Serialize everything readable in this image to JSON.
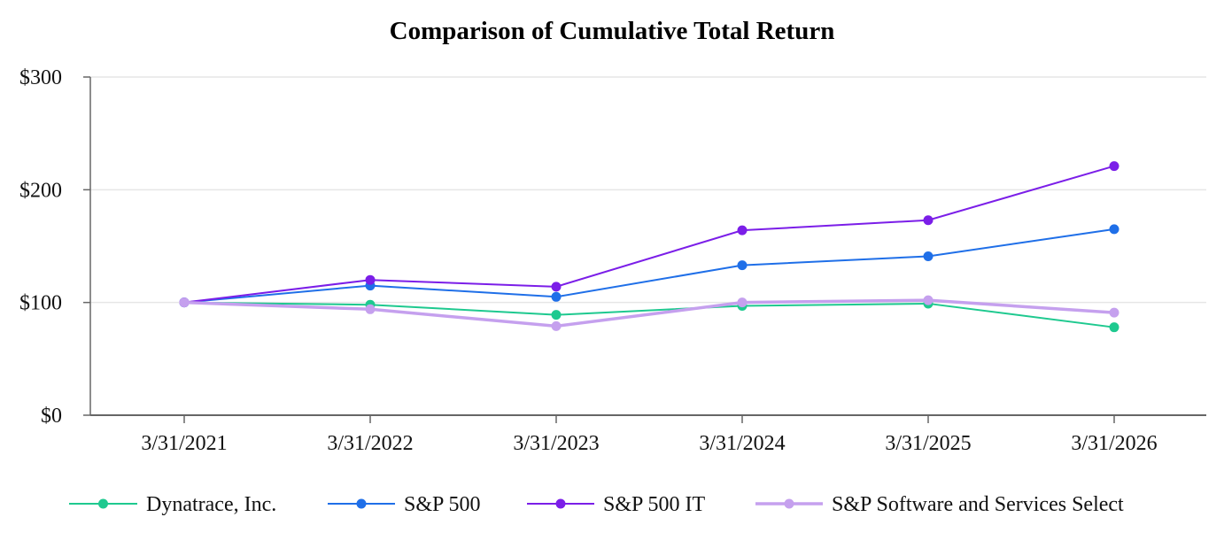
{
  "chart_data": {
    "type": "line",
    "title": "Comparison of Cumulative Total Return",
    "xlabel": "",
    "ylabel": "",
    "categories": [
      "3/31/2021",
      "3/31/2022",
      "3/31/2023",
      "3/31/2024",
      "3/31/2025",
      "3/31/2026"
    ],
    "y_ticks": [
      "$0",
      "$100",
      "$200",
      "$300"
    ],
    "ylim": [
      0,
      300
    ],
    "grid": true,
    "legend_position": "bottom",
    "series": [
      {
        "name": "Dynatrace, Inc.",
        "color": "#1ec98f",
        "values": [
          100,
          98,
          89,
          97,
          99,
          78
        ]
      },
      {
        "name": "S&P 500",
        "color": "#1f6fe8",
        "values": [
          100,
          115,
          105,
          133,
          141,
          165
        ]
      },
      {
        "name": "S&P 500 IT",
        "color": "#7b1ee8",
        "values": [
          100,
          120,
          114,
          164,
          173,
          221
        ]
      },
      {
        "name": "S&P Software and Services Select",
        "color": "#c5a0ee",
        "values": [
          100,
          94,
          79,
          100,
          102,
          91
        ]
      }
    ]
  }
}
